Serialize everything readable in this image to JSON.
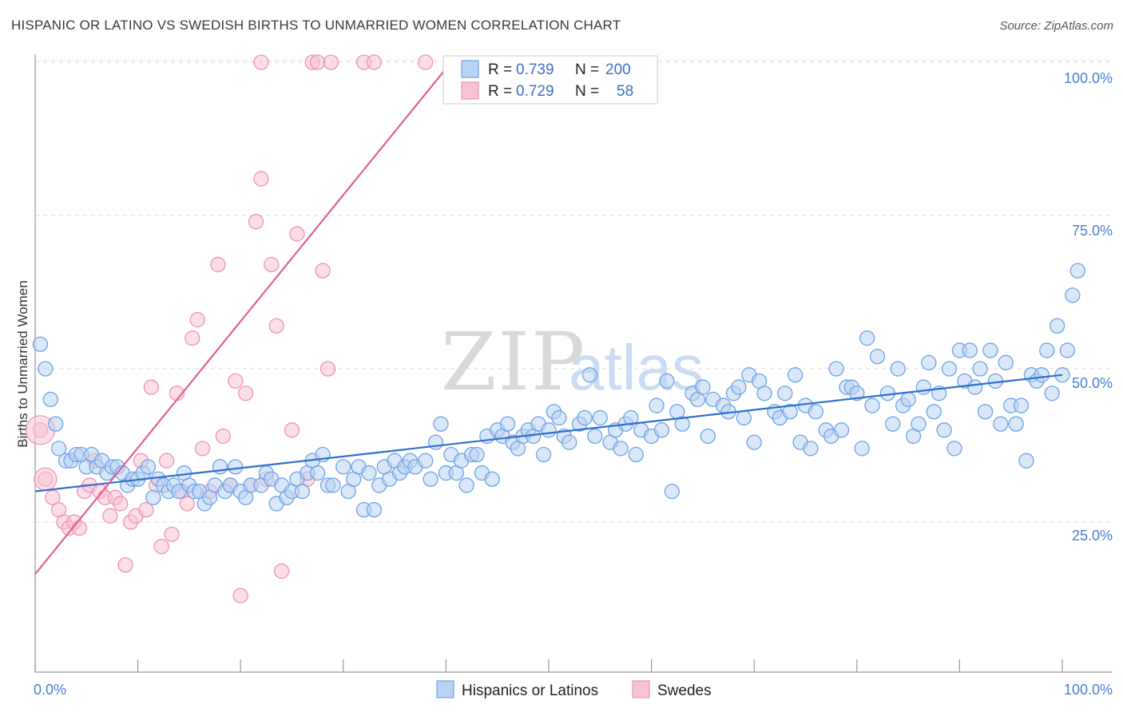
{
  "chart_data": {
    "type": "scatter",
    "title": "HISPANIC OR LATINO VS SWEDISH BIRTHS TO UNMARRIED WOMEN CORRELATION CHART",
    "source": "Source: ZipAtlas.com",
    "xlabel": "",
    "ylabel": "Births to Unmarried Women",
    "xlim": [
      0,
      100
    ],
    "ylim": [
      0,
      105
    ],
    "y_ticks": [
      {
        "value": 25,
        "label": "25.0%"
      },
      {
        "value": 50,
        "label": "50.0%"
      },
      {
        "value": 75,
        "label": "75.0%"
      },
      {
        "value": 100,
        "label": "100.0%"
      }
    ],
    "x_tick_labels": {
      "left": "0.0%",
      "right": "100.0%"
    },
    "legend": {
      "rows": [
        {
          "series": "Hispanics or Latinos",
          "r_label": "R =",
          "r_value": "0.739",
          "n_label": "N =",
          "n_value": "200"
        },
        {
          "series": "Swedes",
          "r_label": "R =",
          "r_value": "0.729",
          "n_label": "N =",
          "n_value": "58"
        }
      ]
    },
    "watermark": {
      "part1": "ZIP",
      "part2": "atlas"
    },
    "series": [
      {
        "name": "Hispanics or Latinos",
        "color": "#6fa3e6",
        "fill": "#b9d3f3",
        "trend": {
          "x": [
            0,
            100
          ],
          "y": [
            30.0,
            49.0
          ],
          "color": "#2f6fcf"
        },
        "points": [
          [
            0.5,
            54
          ],
          [
            1,
            50
          ],
          [
            1.5,
            45
          ],
          [
            2,
            41
          ],
          [
            2.3,
            37
          ],
          [
            3,
            35
          ],
          [
            3.5,
            35
          ],
          [
            4,
            36
          ],
          [
            4.5,
            36
          ],
          [
            5,
            34
          ],
          [
            5.5,
            36
          ],
          [
            6,
            34
          ],
          [
            6.5,
            35
          ],
          [
            7,
            33
          ],
          [
            7.5,
            34
          ],
          [
            8,
            34
          ],
          [
            8.5,
            33
          ],
          [
            9,
            31
          ],
          [
            9.5,
            32
          ],
          [
            10,
            32
          ],
          [
            10.5,
            33
          ],
          [
            11,
            34
          ],
          [
            11.5,
            29
          ],
          [
            12,
            32
          ],
          [
            12.5,
            31
          ],
          [
            13,
            30
          ],
          [
            13.5,
            31
          ],
          [
            14,
            30
          ],
          [
            14.5,
            33
          ],
          [
            15,
            31
          ],
          [
            15.5,
            30
          ],
          [
            16,
            30
          ],
          [
            16.5,
            28
          ],
          [
            17,
            29
          ],
          [
            17.5,
            31
          ],
          [
            18,
            34
          ],
          [
            18.5,
            30
          ],
          [
            19,
            31
          ],
          [
            19.5,
            34
          ],
          [
            20,
            30
          ],
          [
            20.5,
            29
          ],
          [
            21,
            31
          ],
          [
            22,
            31
          ],
          [
            22.5,
            33
          ],
          [
            23,
            32
          ],
          [
            23.5,
            28
          ],
          [
            24,
            31
          ],
          [
            24.5,
            29
          ],
          [
            25,
            30
          ],
          [
            25.5,
            32
          ],
          [
            26,
            30
          ],
          [
            26.5,
            33
          ],
          [
            27,
            35
          ],
          [
            27.5,
            33
          ],
          [
            28,
            36
          ],
          [
            28.5,
            31
          ],
          [
            29,
            31
          ],
          [
            30,
            34
          ],
          [
            30.5,
            30
          ],
          [
            31,
            32
          ],
          [
            31.5,
            34
          ],
          [
            32,
            27
          ],
          [
            32.5,
            33
          ],
          [
            33,
            27
          ],
          [
            33.5,
            31
          ],
          [
            34,
            34
          ],
          [
            34.5,
            32
          ],
          [
            35,
            35
          ],
          [
            35.5,
            33
          ],
          [
            36,
            34
          ],
          [
            36.5,
            35
          ],
          [
            37,
            34
          ],
          [
            38,
            35
          ],
          [
            38.5,
            32
          ],
          [
            39,
            38
          ],
          [
            39.5,
            41
          ],
          [
            40,
            33
          ],
          [
            40.5,
            36
          ],
          [
            41,
            33
          ],
          [
            41.5,
            35
          ],
          [
            42,
            31
          ],
          [
            42.5,
            36
          ],
          [
            43,
            36
          ],
          [
            43.5,
            33
          ],
          [
            44,
            39
          ],
          [
            44.5,
            32
          ],
          [
            45,
            40
          ],
          [
            45.5,
            39
          ],
          [
            46,
            41
          ],
          [
            46.5,
            38
          ],
          [
            47,
            37
          ],
          [
            47.5,
            39
          ],
          [
            48,
            40
          ],
          [
            48.5,
            39
          ],
          [
            49,
            41
          ],
          [
            49.5,
            36
          ],
          [
            50,
            40
          ],
          [
            50.5,
            43
          ],
          [
            51,
            42
          ],
          [
            51.5,
            39
          ],
          [
            52,
            38
          ],
          [
            53,
            41
          ],
          [
            53.5,
            42
          ],
          [
            54,
            49
          ],
          [
            54.5,
            39
          ],
          [
            55,
            42
          ],
          [
            56,
            38
          ],
          [
            56.5,
            40
          ],
          [
            57,
            37
          ],
          [
            57.5,
            41
          ],
          [
            58,
            42
          ],
          [
            58.5,
            36
          ],
          [
            59,
            40
          ],
          [
            60,
            39
          ],
          [
            60.5,
            44
          ],
          [
            61,
            40
          ],
          [
            61.5,
            48
          ],
          [
            62,
            30
          ],
          [
            62.5,
            43
          ],
          [
            63,
            41
          ],
          [
            64,
            46
          ],
          [
            64.5,
            45
          ],
          [
            65,
            47
          ],
          [
            65.5,
            39
          ],
          [
            66,
            45
          ],
          [
            67,
            44
          ],
          [
            67.5,
            43
          ],
          [
            68,
            46
          ],
          [
            68.5,
            47
          ],
          [
            69,
            42
          ],
          [
            69.5,
            49
          ],
          [
            70,
            38
          ],
          [
            70.5,
            48
          ],
          [
            71,
            46
          ],
          [
            72,
            43
          ],
          [
            72.5,
            42
          ],
          [
            73,
            46
          ],
          [
            73.5,
            43
          ],
          [
            74,
            49
          ],
          [
            74.5,
            38
          ],
          [
            75,
            44
          ],
          [
            75.5,
            37
          ],
          [
            76,
            43
          ],
          [
            77,
            40
          ],
          [
            77.5,
            39
          ],
          [
            78,
            50
          ],
          [
            78.5,
            40
          ],
          [
            79,
            47
          ],
          [
            79.5,
            47
          ],
          [
            80,
            46
          ],
          [
            80.5,
            37
          ],
          [
            81,
            55
          ],
          [
            81.5,
            44
          ],
          [
            82,
            52
          ],
          [
            83,
            46
          ],
          [
            83.5,
            41
          ],
          [
            84,
            50
          ],
          [
            84.5,
            44
          ],
          [
            85,
            45
          ],
          [
            85.5,
            39
          ],
          [
            86,
            41
          ],
          [
            86.5,
            47
          ],
          [
            87,
            51
          ],
          [
            87.5,
            43
          ],
          [
            88,
            46
          ],
          [
            88.5,
            40
          ],
          [
            89,
            50
          ],
          [
            89.5,
            37
          ],
          [
            90,
            53
          ],
          [
            90.5,
            48
          ],
          [
            91,
            53
          ],
          [
            91.5,
            47
          ],
          [
            92,
            50
          ],
          [
            92.5,
            43
          ],
          [
            93,
            53
          ],
          [
            93.5,
            48
          ],
          [
            94,
            41
          ],
          [
            94.5,
            51
          ],
          [
            95,
            44
          ],
          [
            95.5,
            41
          ],
          [
            96,
            44
          ],
          [
            96.5,
            35
          ],
          [
            97,
            49
          ],
          [
            97.5,
            48
          ],
          [
            98,
            49
          ],
          [
            98.5,
            53
          ],
          [
            99,
            46
          ],
          [
            99.5,
            57
          ],
          [
            100,
            49
          ],
          [
            100.5,
            53
          ],
          [
            101,
            62
          ],
          [
            101.5,
            66
          ]
        ]
      },
      {
        "name": "Swedes",
        "color": "#ee94b2",
        "fill": "#f7c3d4",
        "trend": {
          "x": [
            0,
            40.5
          ],
          "y": [
            16.5,
            100.0
          ],
          "color": "#e0608e"
        },
        "points": [
          [
            0.5,
            40
          ],
          [
            1,
            32
          ],
          [
            1.7,
            29
          ],
          [
            2.3,
            27
          ],
          [
            2.8,
            25
          ],
          [
            3.3,
            24
          ],
          [
            3.8,
            25
          ],
          [
            4.3,
            24
          ],
          [
            4.8,
            30
          ],
          [
            5.3,
            31
          ],
          [
            5.8,
            35
          ],
          [
            6.3,
            30
          ],
          [
            6.8,
            29
          ],
          [
            7.3,
            26
          ],
          [
            7.8,
            29
          ],
          [
            8.3,
            28
          ],
          [
            8.8,
            18
          ],
          [
            9.3,
            25
          ],
          [
            9.8,
            26
          ],
          [
            10.3,
            35
          ],
          [
            10.8,
            27
          ],
          [
            11.3,
            47
          ],
          [
            11.8,
            31
          ],
          [
            12.3,
            21
          ],
          [
            12.8,
            35
          ],
          [
            13.3,
            23
          ],
          [
            13.8,
            46
          ],
          [
            14.3,
            30
          ],
          [
            14.8,
            28
          ],
          [
            15.3,
            55
          ],
          [
            15.8,
            58
          ],
          [
            16.3,
            37
          ],
          [
            17,
            30
          ],
          [
            17.8,
            67
          ],
          [
            18.3,
            39
          ],
          [
            19,
            31
          ],
          [
            19.5,
            48
          ],
          [
            20,
            13
          ],
          [
            20.5,
            46
          ],
          [
            21,
            31
          ],
          [
            21.5,
            74
          ],
          [
            22,
            81
          ],
          [
            22.5,
            32
          ],
          [
            23,
            67
          ],
          [
            23.5,
            57
          ],
          [
            24,
            17
          ],
          [
            25,
            40
          ],
          [
            25.5,
            72
          ],
          [
            26.5,
            32
          ],
          [
            27,
            100
          ],
          [
            28,
            66
          ],
          [
            28.5,
            50
          ],
          [
            22,
            100
          ],
          [
            32,
            100
          ],
          [
            33,
            100
          ],
          [
            38,
            100
          ],
          [
            27.5,
            100
          ],
          [
            28.8,
            100
          ]
        ]
      }
    ]
  },
  "bottom_legend": {
    "items": [
      "Hispanics or Latinos",
      "Swedes"
    ]
  }
}
